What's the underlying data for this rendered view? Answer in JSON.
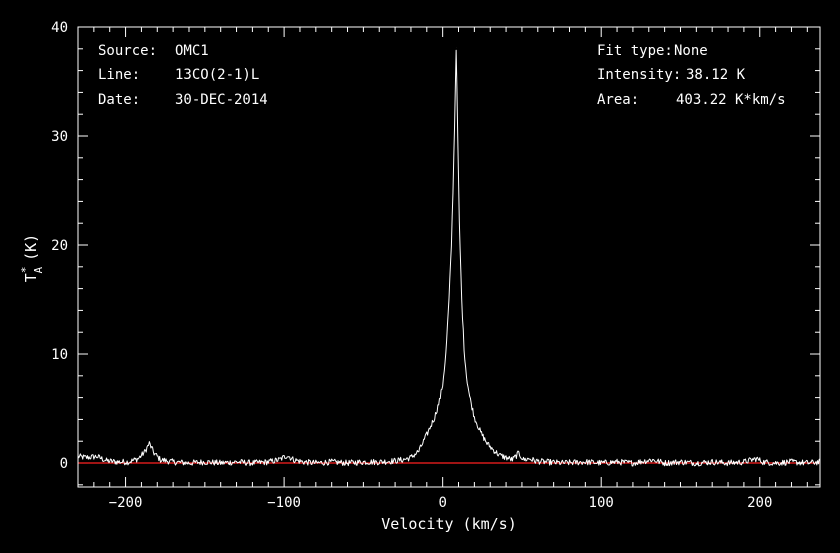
{
  "colors": {
    "background": "#000000",
    "foreground": "#ffffff",
    "baseline": "#ff2020"
  },
  "info": {
    "source_label": "Source:",
    "source_value": "OMC1",
    "line_label": "Line:",
    "line_value": "13CO(2-1)L",
    "date_label": "Date:",
    "date_value": "30-DEC-2014",
    "fit_label": "Fit type:",
    "fit_value": "None",
    "intensity_label": "Intensity:",
    "intensity_value": "38.12 K",
    "area_label": "Area:",
    "area_value": "403.22 K*km/s"
  },
  "chart_data": {
    "type": "line",
    "xlabel": "Velocity (km/s)",
    "ylabel_main": "T",
    "ylabel_sup": "*",
    "ylabel_sub": "A",
    "ylabel_unit": "(K)",
    "xlim": [
      -230,
      238
    ],
    "ylim": [
      -2.2,
      40
    ],
    "xticks": [
      -200,
      -100,
      0,
      100,
      200
    ],
    "xtick_labels": [
      "−200",
      "−100",
      "0",
      "100",
      "200"
    ],
    "yticks": [
      0,
      10,
      20,
      30,
      40
    ],
    "ytick_labels": [
      "0",
      "10",
      "20",
      "30",
      "40"
    ],
    "baseline_value": 0,
    "peak": {
      "x": 8.5,
      "y": 38.12
    },
    "features": [
      {
        "x": -218,
        "y": 0.6
      },
      {
        "x": -185,
        "y": 1.8
      },
      {
        "x": -98,
        "y": 0.7
      },
      {
        "x": -5,
        "y": 4.2
      },
      {
        "x": 48,
        "y": 0.9
      },
      {
        "x": 132,
        "y": 0.3
      },
      {
        "x": 198,
        "y": 0.4
      }
    ],
    "series": [
      {
        "values": [
          [
            -230,
            0.6
          ],
          [
            -225,
            0.5
          ],
          [
            -218,
            0.6
          ],
          [
            -212,
            0.2
          ],
          [
            -205,
            0.1
          ],
          [
            -198,
            0.1
          ],
          [
            -192,
            0.4
          ],
          [
            -188,
            1.0
          ],
          [
            -185,
            1.8
          ],
          [
            -182,
            0.9
          ],
          [
            -178,
            0.3
          ],
          [
            -170,
            0.1
          ],
          [
            -160,
            0.0
          ],
          [
            -150,
            0.1
          ],
          [
            -140,
            0.0
          ],
          [
            -130,
            0.1
          ],
          [
            -120,
            0.0
          ],
          [
            -110,
            0.1
          ],
          [
            -103,
            0.3
          ],
          [
            -98,
            0.7
          ],
          [
            -94,
            0.3
          ],
          [
            -88,
            0.1
          ],
          [
            -80,
            0.0
          ],
          [
            -70,
            0.1
          ],
          [
            -60,
            0.0
          ],
          [
            -50,
            0.1
          ],
          [
            -40,
            0.1
          ],
          [
            -30,
            0.2
          ],
          [
            -25,
            0.3
          ],
          [
            -20,
            0.5
          ],
          [
            -15,
            1.1
          ],
          [
            -10,
            2.6
          ],
          [
            -5,
            4.2
          ],
          [
            -2,
            5.7
          ],
          [
            0,
            7.2
          ],
          [
            2,
            10.0
          ],
          [
            4,
            15.0
          ],
          [
            5.5,
            20.0
          ],
          [
            6.5,
            25.0
          ],
          [
            7.5,
            31.0
          ],
          [
            8.5,
            38.12
          ],
          [
            9.5,
            30.0
          ],
          [
            10.5,
            22.0
          ],
          [
            12,
            15.0
          ],
          [
            13.5,
            10.5
          ],
          [
            15,
            8.0
          ],
          [
            17,
            6.1
          ],
          [
            20,
            4.2
          ],
          [
            24,
            2.8
          ],
          [
            28,
            1.8
          ],
          [
            32,
            1.2
          ],
          [
            36,
            0.7
          ],
          [
            40,
            0.5
          ],
          [
            44,
            0.3
          ],
          [
            48,
            0.9
          ],
          [
            51,
            0.3
          ],
          [
            55,
            0.4
          ],
          [
            58,
            0.2
          ],
          [
            65,
            0.1
          ],
          [
            75,
            0.0
          ],
          [
            90,
            0.1
          ],
          [
            100,
            0.0
          ],
          [
            110,
            0.1
          ],
          [
            120,
            0.0
          ],
          [
            132,
            0.3
          ],
          [
            140,
            0.0
          ],
          [
            150,
            0.1
          ],
          [
            160,
            0.0
          ],
          [
            170,
            0.1
          ],
          [
            180,
            0.0
          ],
          [
            190,
            0.1
          ],
          [
            198,
            0.4
          ],
          [
            202,
            0.1
          ],
          [
            210,
            0.0
          ],
          [
            220,
            0.1
          ],
          [
            230,
            0.0
          ],
          [
            238,
            0.1
          ]
        ]
      }
    ],
    "grid": false,
    "legend": "none"
  }
}
